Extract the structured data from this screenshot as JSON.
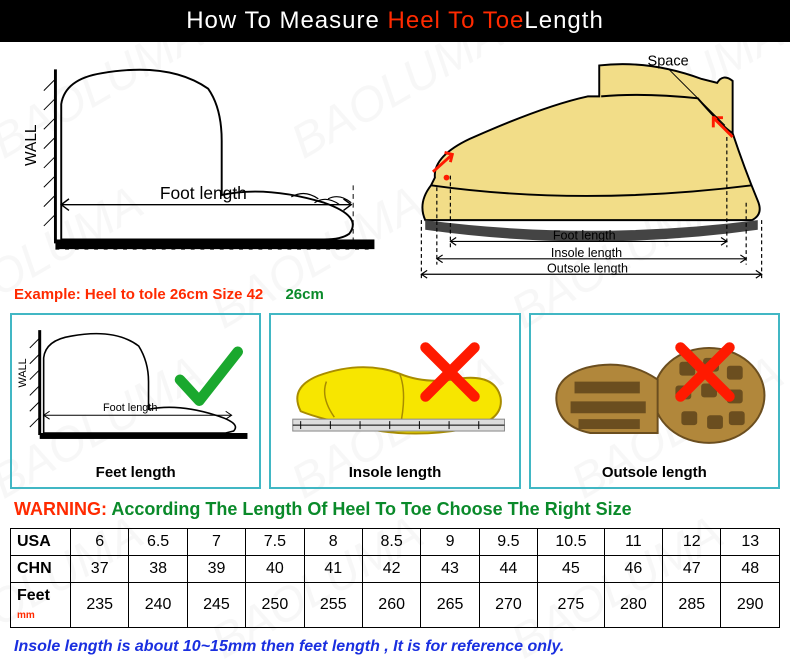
{
  "title": {
    "pre": "How To Measure ",
    "red": "Heel To Toe ",
    "post": "Length"
  },
  "watermark_text": "BAOLUMA",
  "top": {
    "left": {
      "wall": "WALL",
      "footlen": "Foot length"
    },
    "right": {
      "space": "Space",
      "foot": "Foot length",
      "insole": "Insole length",
      "outsole": "Outsole length"
    }
  },
  "example": {
    "label": "Example: Heel to tole 26cm Size 42",
    "val": "26cm"
  },
  "mid": {
    "feet": {
      "wall": "WALL",
      "foot": "Foot length",
      "cap": "Feet length"
    },
    "insole": {
      "cap": "Insole length"
    },
    "outsole": {
      "cap": "Outsole length"
    }
  },
  "warn": {
    "w": "WARNING:",
    "t": "  According The Length Of Heel To Toe Choose The Right Size"
  },
  "table": {
    "rows": [
      {
        "hd": "USA",
        "cells": [
          "6",
          "6.5",
          "7",
          "7.5",
          "8",
          "8.5",
          "9",
          "9.5",
          "10.5",
          "11",
          "12",
          "13"
        ]
      },
      {
        "hd": "CHN",
        "cells": [
          "37",
          "38",
          "39",
          "40",
          "41",
          "42",
          "43",
          "44",
          "45",
          "46",
          "47",
          "48"
        ]
      },
      {
        "hd": "Feet",
        "unit": "mm",
        "cells": [
          "235",
          "240",
          "245",
          "250",
          "255",
          "260",
          "265",
          "270",
          "275",
          "280",
          "285",
          "290"
        ]
      }
    ]
  },
  "note": "Insole length is about 10~15mm then feet length , It is for reference only.",
  "colors": {
    "border": "#41b7c4",
    "check": "#1aa82e",
    "cross": "#ff1a00",
    "shoe_fill": "#f2dd88",
    "insole": "#f7e600",
    "outsole": "#b1873b"
  }
}
